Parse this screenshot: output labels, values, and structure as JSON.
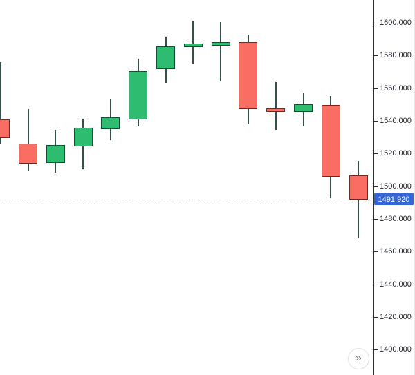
{
  "chart_data": {
    "type": "candlestick",
    "title": "",
    "xlabel": "",
    "ylabel": "",
    "grid": false,
    "ylim": [
      1384.4,
      1614.0
    ],
    "x_start": 0.7,
    "x_step": 39.8,
    "body_width": 27,
    "up_color": "#2ebd70",
    "up_border_color": "#0d5132",
    "down_color": "#fa6d63",
    "down_border_color": "#7e231c",
    "wick_color": "#32514a",
    "candles": [
      {
        "o": 1540.8,
        "h": 1575.9,
        "l": 1526.0,
        "c": 1529.4
      },
      {
        "o": 1526.0,
        "h": 1547.1,
        "l": 1509.1,
        "c": 1513.7
      },
      {
        "o": 1514.2,
        "h": 1534.5,
        "l": 1508.2,
        "c": 1525.2
      },
      {
        "o": 1524.3,
        "h": 1541.2,
        "l": 1510.4,
        "c": 1535.7
      },
      {
        "o": 1534.9,
        "h": 1553.1,
        "l": 1528.1,
        "c": 1542.1
      },
      {
        "o": 1540.8,
        "h": 1578.0,
        "l": 1536.6,
        "c": 1570.4
      },
      {
        "o": 1571.7,
        "h": 1591.5,
        "l": 1563.2,
        "c": 1585.6
      },
      {
        "o": 1585.2,
        "h": 1601.3,
        "l": 1575.1,
        "c": 1587.3
      },
      {
        "o": 1586.1,
        "h": 1600.4,
        "l": 1564.1,
        "c": 1588.2
      },
      {
        "o": 1588.2,
        "h": 1592.8,
        "l": 1537.8,
        "c": 1547.1
      },
      {
        "o": 1547.5,
        "h": 1563.6,
        "l": 1534.5,
        "c": 1546.3
      },
      {
        "o": 1545.5,
        "h": 1556.9,
        "l": 1536.6,
        "c": 1550.1
      },
      {
        "o": 1549.7,
        "h": 1555.2,
        "l": 1492.6,
        "c": 1505.7
      },
      {
        "o": 1506.5,
        "h": 1515.4,
        "l": 1468.1,
        "c": 1491.92
      }
    ]
  },
  "price_axis": {
    "ticks": [
      "1600.000",
      "1580.000",
      "1560.000",
      "1540.000",
      "1520.000",
      "1500.000",
      "1480.000",
      "1460.000",
      "1440.000",
      "1420.000",
      "1400.000"
    ],
    "last_price": 1491.92,
    "last_price_label": "1491.920",
    "badge_color": "#3665d8",
    "text_color": "#1b1f27"
  },
  "controls": {
    "scroll_right_icon": "»"
  }
}
